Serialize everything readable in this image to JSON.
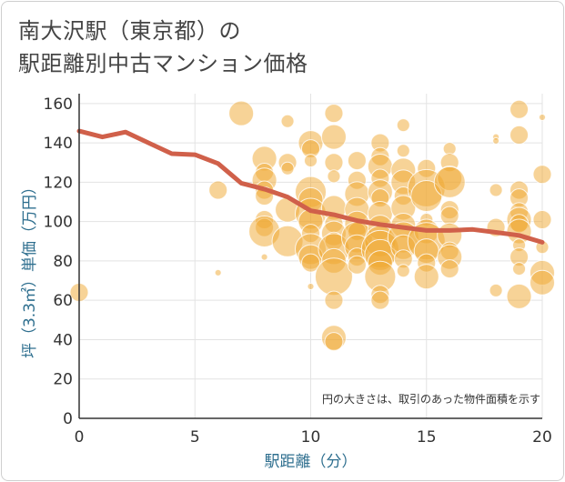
{
  "chart_data": {
    "type": "scatter",
    "title_lines": [
      "南大沢駅（東京都）の",
      "駅距離別中古マンション価格"
    ],
    "xlabel": "駅距離（分）",
    "ylabel": "坪（3.3㎡）単価（万円）",
    "annotation": "円の大きさは、取引のあった物件面積を示す",
    "xlim": [
      0,
      20
    ],
    "ylim": [
      0,
      165
    ],
    "x_ticks": [
      0,
      5,
      10,
      15,
      20
    ],
    "y_ticks": [
      0,
      20,
      40,
      60,
      80,
      100,
      120,
      140,
      160
    ],
    "grid": true,
    "colors": {
      "bubble": "#f0a830",
      "trend": "#d0604a",
      "axis_text": "#2f6f8f"
    },
    "trend_line": {
      "x": [
        0,
        1,
        2,
        3,
        4,
        5,
        6,
        7,
        8,
        9,
        10,
        11,
        12,
        13,
        14,
        15,
        16,
        17,
        18,
        19,
        20
      ],
      "y": [
        146,
        143,
        145.5,
        140,
        134.5,
        134,
        129.5,
        119.5,
        116.5,
        112.5,
        105.5,
        103.5,
        100.5,
        98.5,
        97,
        95.5,
        95.5,
        96,
        94.5,
        93,
        89.5
      ]
    },
    "points": [
      {
        "x": 0,
        "y": 64,
        "s": 3
      },
      {
        "x": 6,
        "y": 116,
        "s": 3
      },
      {
        "x": 6,
        "y": 74,
        "s": 1
      },
      {
        "x": 7,
        "y": 155,
        "s": 4
      },
      {
        "x": 8,
        "y": 132,
        "s": 4
      },
      {
        "x": 8,
        "y": 125,
        "s": 3
      },
      {
        "x": 8,
        "y": 121,
        "s": 4
      },
      {
        "x": 8,
        "y": 116,
        "s": 3
      },
      {
        "x": 8,
        "y": 113,
        "s": 3
      },
      {
        "x": 8,
        "y": 101,
        "s": 3
      },
      {
        "x": 8,
        "y": 97,
        "s": 3
      },
      {
        "x": 8,
        "y": 95,
        "s": 5
      },
      {
        "x": 8,
        "y": 82,
        "s": 1
      },
      {
        "x": 9,
        "y": 151,
        "s": 2
      },
      {
        "x": 9,
        "y": 130,
        "s": 3
      },
      {
        "x": 9,
        "y": 127,
        "s": 2
      },
      {
        "x": 9,
        "y": 106,
        "s": 4
      },
      {
        "x": 9,
        "y": 90,
        "s": 5
      },
      {
        "x": 10,
        "y": 140,
        "s": 4
      },
      {
        "x": 10,
        "y": 137,
        "s": 3
      },
      {
        "x": 10,
        "y": 131,
        "s": 2
      },
      {
        "x": 10,
        "y": 115,
        "s": 5
      },
      {
        "x": 10,
        "y": 111,
        "s": 4
      },
      {
        "x": 10,
        "y": 104,
        "s": 5
      },
      {
        "x": 10,
        "y": 100,
        "s": 4
      },
      {
        "x": 10,
        "y": 94,
        "s": 3
      },
      {
        "x": 10,
        "y": 86,
        "s": 5
      },
      {
        "x": 10,
        "y": 82,
        "s": 4
      },
      {
        "x": 10,
        "y": 79,
        "s": 3
      },
      {
        "x": 10,
        "y": 67,
        "s": 1
      },
      {
        "x": 11,
        "y": 155,
        "s": 3
      },
      {
        "x": 11,
        "y": 143,
        "s": 4
      },
      {
        "x": 11,
        "y": 130,
        "s": 3
      },
      {
        "x": 11,
        "y": 123,
        "s": 2
      },
      {
        "x": 11,
        "y": 107,
        "s": 4
      },
      {
        "x": 11,
        "y": 99,
        "s": 3
      },
      {
        "x": 11,
        "y": 94,
        "s": 4
      },
      {
        "x": 11,
        "y": 90,
        "s": 3
      },
      {
        "x": 11,
        "y": 86,
        "s": 5
      },
      {
        "x": 11,
        "y": 80,
        "s": 4
      },
      {
        "x": 11,
        "y": 72,
        "s": 6
      },
      {
        "x": 11,
        "y": 60,
        "s": 3
      },
      {
        "x": 11,
        "y": 41,
        "s": 4
      },
      {
        "x": 11,
        "y": 39,
        "s": 3
      },
      {
        "x": 12,
        "y": 131,
        "s": 3
      },
      {
        "x": 12,
        "y": 121,
        "s": 3
      },
      {
        "x": 12,
        "y": 114,
        "s": 4
      },
      {
        "x": 12,
        "y": 106,
        "s": 4
      },
      {
        "x": 12,
        "y": 99,
        "s": 4
      },
      {
        "x": 12,
        "y": 95,
        "s": 3
      },
      {
        "x": 12,
        "y": 92,
        "s": 5
      },
      {
        "x": 12,
        "y": 87,
        "s": 4
      },
      {
        "x": 12,
        "y": 82,
        "s": 3
      },
      {
        "x": 12,
        "y": 78,
        "s": 3
      },
      {
        "x": 13,
        "y": 140,
        "s": 3
      },
      {
        "x": 13,
        "y": 133,
        "s": 3
      },
      {
        "x": 13,
        "y": 128,
        "s": 4
      },
      {
        "x": 13,
        "y": 122,
        "s": 3
      },
      {
        "x": 13,
        "y": 115,
        "s": 4
      },
      {
        "x": 13,
        "y": 112,
        "s": 3
      },
      {
        "x": 13,
        "y": 104,
        "s": 4
      },
      {
        "x": 13,
        "y": 97,
        "s": 4
      },
      {
        "x": 13,
        "y": 90,
        "s": 5
      },
      {
        "x": 13,
        "y": 86,
        "s": 6
      },
      {
        "x": 13,
        "y": 83,
        "s": 5
      },
      {
        "x": 13,
        "y": 79,
        "s": 4
      },
      {
        "x": 13,
        "y": 72,
        "s": 5
      },
      {
        "x": 13,
        "y": 63,
        "s": 3
      },
      {
        "x": 13,
        "y": 60,
        "s": 3
      },
      {
        "x": 14,
        "y": 149,
        "s": 2
      },
      {
        "x": 14,
        "y": 136,
        "s": 2
      },
      {
        "x": 14,
        "y": 126,
        "s": 4
      },
      {
        "x": 14,
        "y": 120,
        "s": 4
      },
      {
        "x": 14,
        "y": 113,
        "s": 3
      },
      {
        "x": 14,
        "y": 107,
        "s": 4
      },
      {
        "x": 14,
        "y": 98,
        "s": 4
      },
      {
        "x": 14,
        "y": 92,
        "s": 5
      },
      {
        "x": 14,
        "y": 87,
        "s": 4
      },
      {
        "x": 14,
        "y": 81,
        "s": 3
      },
      {
        "x": 14,
        "y": 75,
        "s": 2
      },
      {
        "x": 15,
        "y": 127,
        "s": 3
      },
      {
        "x": 15,
        "y": 117,
        "s": 6
      },
      {
        "x": 15,
        "y": 113,
        "s": 5
      },
      {
        "x": 15,
        "y": 101,
        "s": 2
      },
      {
        "x": 15,
        "y": 95,
        "s": 4
      },
      {
        "x": 15,
        "y": 90,
        "s": 6
      },
      {
        "x": 15,
        "y": 85,
        "s": 4
      },
      {
        "x": 15,
        "y": 79,
        "s": 3
      },
      {
        "x": 15,
        "y": 72,
        "s": 4
      },
      {
        "x": 16,
        "y": 137,
        "s": 2
      },
      {
        "x": 16,
        "y": 130,
        "s": 3
      },
      {
        "x": 16,
        "y": 122,
        "s": 4
      },
      {
        "x": 16,
        "y": 120,
        "s": 5
      },
      {
        "x": 16,
        "y": 106,
        "s": 3
      },
      {
        "x": 16,
        "y": 103,
        "s": 3
      },
      {
        "x": 16,
        "y": 93,
        "s": 4
      },
      {
        "x": 16,
        "y": 85,
        "s": 3
      },
      {
        "x": 16,
        "y": 82,
        "s": 4
      },
      {
        "x": 16,
        "y": 76,
        "s": 3
      },
      {
        "x": 18,
        "y": 143,
        "s": 1
      },
      {
        "x": 18,
        "y": 141,
        "s": 1
      },
      {
        "x": 18,
        "y": 116,
        "s": 2
      },
      {
        "x": 18,
        "y": 97,
        "s": 3
      },
      {
        "x": 18,
        "y": 65,
        "s": 2
      },
      {
        "x": 19,
        "y": 157,
        "s": 3
      },
      {
        "x": 19,
        "y": 144,
        "s": 3
      },
      {
        "x": 19,
        "y": 116,
        "s": 3
      },
      {
        "x": 19,
        "y": 112,
        "s": 3
      },
      {
        "x": 19,
        "y": 105,
        "s": 3
      },
      {
        "x": 19,
        "y": 101,
        "s": 4
      },
      {
        "x": 19,
        "y": 99,
        "s": 3
      },
      {
        "x": 19,
        "y": 95,
        "s": 4
      },
      {
        "x": 19,
        "y": 88,
        "s": 2
      },
      {
        "x": 19,
        "y": 82,
        "s": 3
      },
      {
        "x": 19,
        "y": 76,
        "s": 2
      },
      {
        "x": 19,
        "y": 62,
        "s": 4
      },
      {
        "x": 20,
        "y": 153,
        "s": 1
      },
      {
        "x": 20,
        "y": 124,
        "s": 3
      },
      {
        "x": 20,
        "y": 101,
        "s": 3
      },
      {
        "x": 20,
        "y": 87,
        "s": 2
      },
      {
        "x": 20,
        "y": 74,
        "s": 4
      },
      {
        "x": 20,
        "y": 69,
        "s": 4
      }
    ]
  }
}
